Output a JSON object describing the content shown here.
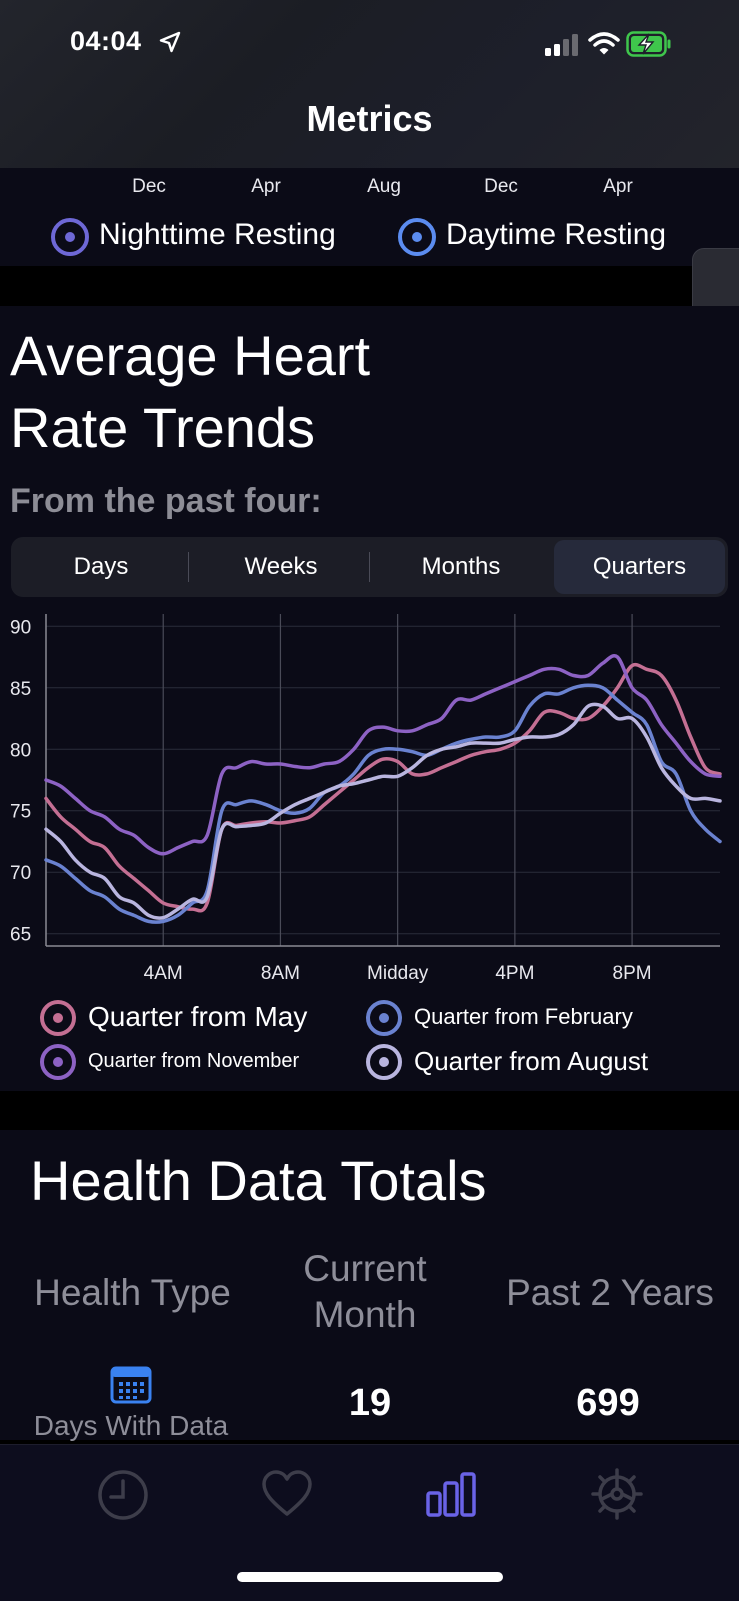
{
  "status_bar": {
    "time": "04:04"
  },
  "nav": {
    "title": "Metrics"
  },
  "resting_chart": {
    "x_ticks": [
      "Dec",
      "Apr",
      "Aug",
      "Dec",
      "Apr"
    ],
    "legend": [
      {
        "label": "Nighttime Resting",
        "color": "#6e68d6"
      },
      {
        "label": "Daytime Resting",
        "color": "#5b8cf0"
      }
    ]
  },
  "heart_section": {
    "title_line1": "Average Heart",
    "title_line2": "Rate Trends",
    "subtitle": "From the past four:",
    "segments": [
      "Days",
      "Weeks",
      "Months",
      "Quarters"
    ],
    "selected_segment": "Quarters"
  },
  "chart_data": {
    "type": "line",
    "ylim": [
      64,
      91
    ],
    "y_ticks": [
      90,
      85,
      80,
      75,
      70,
      65
    ],
    "x_ticks": [
      {
        "label": "4AM",
        "x": 4
      },
      {
        "label": "8AM",
        "x": 8
      },
      {
        "label": "Midday",
        "x": 12
      },
      {
        "label": "4PM",
        "x": 16
      },
      {
        "label": "8PM",
        "x": 20
      }
    ],
    "xlim": [
      0,
      23
    ],
    "grid": true,
    "legend_position": "bottom",
    "series": [
      {
        "name": "Quarter from May",
        "color": "#c46f93",
        "x": [
          0,
          0.5,
          1,
          1.5,
          2,
          2.5,
          3,
          3.5,
          4,
          4.5,
          5,
          5.5,
          6,
          6.5,
          7,
          7.5,
          8,
          8.5,
          9,
          9.5,
          10,
          10.5,
          11,
          11.5,
          12,
          12.5,
          13,
          13.5,
          14,
          14.5,
          15,
          15.5,
          16,
          16.5,
          17,
          17.5,
          18,
          18.5,
          19,
          19.5,
          20,
          20.5,
          21,
          21.5,
          22,
          22.5,
          23
        ],
        "y": [
          76,
          74.5,
          73.5,
          72.5,
          72,
          70.5,
          69.5,
          68.5,
          67.5,
          67.2,
          67.0,
          67.5,
          73.5,
          73.8,
          74.0,
          74.1,
          74.0,
          74.2,
          74.5,
          75.5,
          76.5,
          77.5,
          78.5,
          79.2,
          79.0,
          78.0,
          78.0,
          78.5,
          79.0,
          79.5,
          79.8,
          80.0,
          80.5,
          81.5,
          83.0,
          83.0,
          82.5,
          82.5,
          83.5,
          85.0,
          86.8,
          86.5,
          86.0,
          84.0,
          81.0,
          78.5,
          78.0
        ]
      },
      {
        "name": "Quarter from February",
        "color": "#6a82d0",
        "x": [
          0,
          0.5,
          1,
          1.5,
          2,
          2.5,
          3,
          3.5,
          4,
          4.5,
          5,
          5.5,
          6,
          6.5,
          7,
          7.5,
          8,
          8.5,
          9,
          9.5,
          10,
          10.5,
          11,
          11.5,
          12,
          12.5,
          13,
          13.5,
          14,
          14.5,
          15,
          15.5,
          16,
          16.5,
          17,
          17.5,
          18,
          18.5,
          19,
          19.5,
          20,
          20.5,
          21,
          21.5,
          22,
          22.5,
          23
        ],
        "y": [
          71,
          70.5,
          69.5,
          68.5,
          68.0,
          67.0,
          66.5,
          66.0,
          66.0,
          66.5,
          67.5,
          68.5,
          75.0,
          75.5,
          75.8,
          75.5,
          75.0,
          74.8,
          75.2,
          76.5,
          77.0,
          78.0,
          79.5,
          80.0,
          80.0,
          79.8,
          79.5,
          80.0,
          80.5,
          80.8,
          81.0,
          81.0,
          81.5,
          83.5,
          84.5,
          84.5,
          85.0,
          85.2,
          85.0,
          84.0,
          83.0,
          82.0,
          79.0,
          78.0,
          75.0,
          73.5,
          72.5
        ]
      },
      {
        "name": "Quarter from November",
        "color": "#8d62c4",
        "x": [
          0,
          0.5,
          1,
          1.5,
          2,
          2.5,
          3,
          3.5,
          4,
          4.5,
          5,
          5.5,
          6,
          6.5,
          7,
          7.5,
          8,
          8.5,
          9,
          9.5,
          10,
          10.5,
          11,
          11.5,
          12,
          12.5,
          13,
          13.5,
          14,
          14.5,
          15,
          15.5,
          16,
          16.5,
          17,
          17.5,
          18,
          18.5,
          19,
          19.5,
          20,
          20.5,
          21,
          21.5,
          22,
          22.5,
          23
        ],
        "y": [
          77.5,
          77.0,
          76.0,
          75.0,
          74.5,
          73.5,
          73.0,
          72.0,
          71.5,
          72.0,
          72.5,
          73.0,
          78.0,
          78.5,
          79.0,
          78.8,
          78.8,
          78.6,
          78.5,
          78.8,
          79.0,
          80.0,
          81.5,
          81.8,
          81.5,
          81.5,
          82.0,
          82.5,
          84.0,
          84.0,
          84.5,
          85.0,
          85.5,
          86.0,
          86.5,
          86.5,
          86.0,
          86.0,
          87.0,
          87.5,
          85.0,
          84.0,
          82.0,
          80.5,
          79.0,
          78.0,
          77.8
        ]
      },
      {
        "name": "Quarter from August",
        "color": "#b9b5df",
        "x": [
          0,
          0.5,
          1,
          1.5,
          2,
          2.5,
          3,
          3.5,
          4,
          4.5,
          5,
          5.5,
          6,
          6.5,
          7,
          7.5,
          8,
          8.5,
          9,
          9.5,
          10,
          10.5,
          11,
          11.5,
          12,
          12.5,
          13,
          13.5,
          14,
          14.5,
          15,
          15.5,
          16,
          16.5,
          17,
          17.5,
          18,
          18.5,
          19,
          19.5,
          20,
          20.5,
          21,
          21.5,
          22,
          22.5,
          23
        ],
        "y": [
          73.5,
          72.5,
          71.0,
          70.0,
          69.5,
          68.0,
          67.5,
          66.5,
          66.3,
          67.0,
          67.8,
          68.0,
          73.5,
          73.7,
          73.8,
          74.0,
          74.8,
          75.5,
          76.0,
          76.5,
          77.0,
          77.2,
          77.5,
          77.8,
          77.8,
          78.5,
          79.5,
          80.0,
          80.2,
          80.5,
          80.5,
          80.5,
          80.8,
          81.0,
          81.0,
          81.2,
          82.0,
          83.5,
          83.5,
          82.5,
          82.5,
          81.0,
          78.5,
          77.0,
          76.0,
          76.0,
          75.8
        ]
      }
    ]
  },
  "totals": {
    "title": "Health Data Totals",
    "headers": [
      "Health Type",
      "Current\nMonth",
      "Past 2 Years"
    ],
    "rows": [
      {
        "type": "Days With Data",
        "icon": "calendar-icon",
        "current_month": "19",
        "past_2_years": "699"
      }
    ]
  },
  "tabbar": {
    "items": [
      {
        "icon": "clock-icon",
        "active": false
      },
      {
        "icon": "heart-icon",
        "active": false
      },
      {
        "icon": "bar-chart-icon",
        "active": true
      },
      {
        "icon": "gear-icon",
        "active": false
      }
    ],
    "active_color": "#6a63e6",
    "inactive_color": "#3d3d4a"
  }
}
